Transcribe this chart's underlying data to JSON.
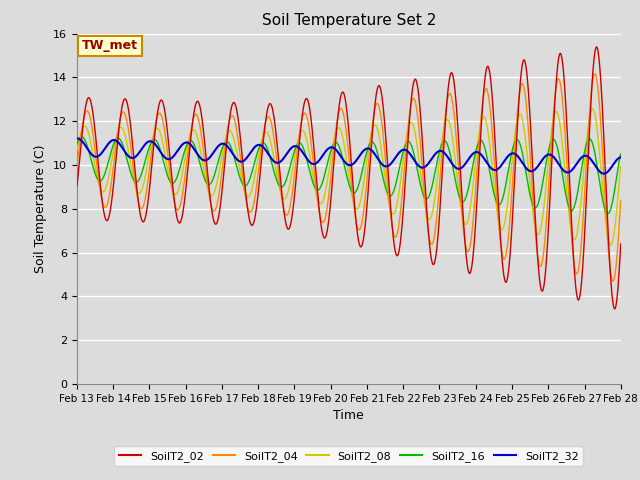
{
  "title": "Soil Temperature Set 2",
  "xlabel": "Time",
  "ylabel": "Soil Temperature (C)",
  "ylim": [
    0,
    16
  ],
  "annotation": "TW_met",
  "background_color": "#dcdcdc",
  "plot_bg_color": "#dcdcdc",
  "series_colors": {
    "SoilT2_02": "#cc0000",
    "SoilT2_04": "#ff8800",
    "SoilT2_08": "#cccc00",
    "SoilT2_16": "#00bb00",
    "SoilT2_32": "#0000cc"
  },
  "xtick_labels": [
    "Feb 13",
    "Feb 14",
    "Feb 15",
    "Feb 16",
    "Feb 17",
    "Feb 18",
    "Feb 19",
    "Feb 20",
    "Feb 21",
    "Feb 22",
    "Feb 23",
    "Feb 24",
    "Feb 25",
    "Feb 26",
    "Feb 27",
    "Feb 28"
  ],
  "ytick_values": [
    0,
    2,
    4,
    6,
    8,
    10,
    12,
    14,
    16
  ]
}
